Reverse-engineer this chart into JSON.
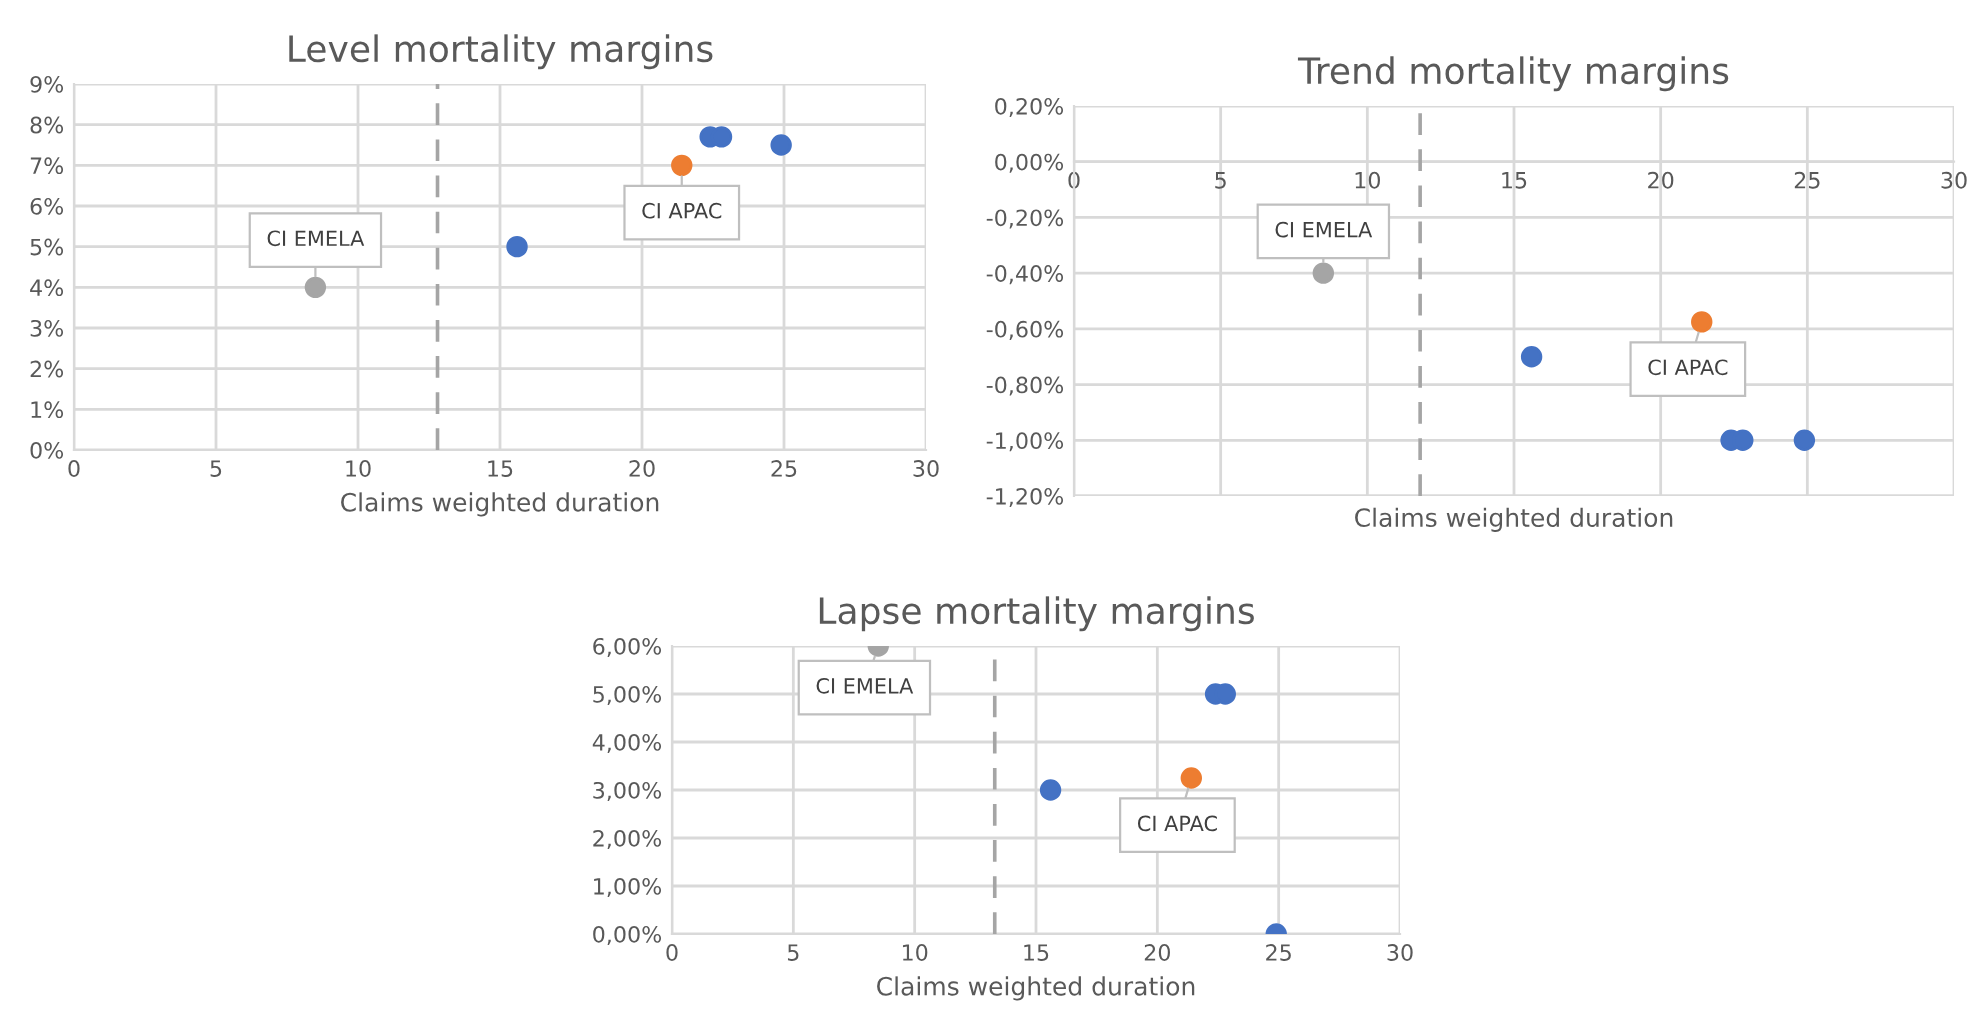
{
  "chart_data": [
    {
      "type": "scatter",
      "title": "Level mortality margins",
      "xlabel": "Claims weighted duration",
      "xlim": [
        0,
        30
      ],
      "xticks": [
        0,
        5,
        10,
        15,
        20,
        25,
        30
      ],
      "ylim": [
        0,
        9
      ],
      "yticks": [
        {
          "value": 0,
          "label": "0%"
        },
        {
          "value": 1,
          "label": "1%"
        },
        {
          "value": 2,
          "label": "2%"
        },
        {
          "value": 3,
          "label": "3%"
        },
        {
          "value": 4,
          "label": "4%"
        },
        {
          "value": 5,
          "label": "5%"
        },
        {
          "value": 6,
          "label": "6%"
        },
        {
          "value": 7,
          "label": "7%"
        },
        {
          "value": 8,
          "label": "8%"
        },
        {
          "value": 9,
          "label": "9%"
        }
      ],
      "grid": true,
      "marker": "circle",
      "series": [
        {
          "color": "#4472c4",
          "x": [
            15.6,
            22.4,
            22.8,
            24.9
          ],
          "values": [
            5.0,
            7.7,
            7.7,
            7.5
          ]
        },
        {
          "name": "CI APAC",
          "color": "#ed7d31",
          "x": [
            21.4
          ],
          "values": [
            7.0
          ]
        },
        {
          "name": "CI EMELA",
          "color": "#a5a5a5",
          "x": [
            8.5
          ],
          "values": [
            4.0
          ]
        }
      ],
      "ref_lines": [
        {
          "axis": "x",
          "value": 12.8,
          "color": "#a5a5a5",
          "line_style": "dashed"
        }
      ]
    },
    {
      "type": "scatter",
      "title": "Trend mortality margins",
      "xlabel": "Claims weighted duration",
      "xlim": [
        0,
        30
      ],
      "xticks": [
        0,
        5,
        10,
        15,
        20,
        25,
        30
      ],
      "ylim": [
        -1.2,
        0.2
      ],
      "yticks": [
        {
          "value": -1.2,
          "label": "-1,20%"
        },
        {
          "value": -1.0,
          "label": "-1,00%"
        },
        {
          "value": -0.8,
          "label": "-0,80%"
        },
        {
          "value": -0.6,
          "label": "-0,60%"
        },
        {
          "value": -0.4,
          "label": "-0,40%"
        },
        {
          "value": -0.2,
          "label": "-0,20%"
        },
        {
          "value": 0,
          "label": "0,00%"
        },
        {
          "value": 0.2,
          "label": "0,20%"
        }
      ],
      "grid": true,
      "marker": "circle",
      "series": [
        {
          "color": "#4472c4",
          "x": [
            15.6,
            22.4,
            22.8,
            24.9
          ],
          "values": [
            -0.7,
            -1.0,
            -1.0,
            -1.0
          ]
        },
        {
          "name": "CI APAC",
          "color": "#ed7d31",
          "x": [
            21.4
          ],
          "values": [
            -0.575
          ]
        },
        {
          "name": "CI EMELA",
          "color": "#a5a5a5",
          "x": [
            8.5
          ],
          "values": [
            -0.4
          ]
        }
      ],
      "ref_lines": [
        {
          "axis": "x",
          "value": 11.8,
          "color": "#a5a5a5",
          "line_style": "dashed"
        }
      ]
    },
    {
      "type": "scatter",
      "title": "Lapse mortality margins",
      "xlabel": "Claims weighted duration",
      "xlim": [
        0,
        30
      ],
      "xticks": [
        0,
        5,
        10,
        15,
        20,
        25,
        30
      ],
      "ylim": [
        0,
        6
      ],
      "yticks": [
        {
          "value": 0,
          "label": "0,00%"
        },
        {
          "value": 1,
          "label": "1,00%"
        },
        {
          "value": 2,
          "label": "2,00%"
        },
        {
          "value": 3,
          "label": "3,00%"
        },
        {
          "value": 4,
          "label": "4,00%"
        },
        {
          "value": 5,
          "label": "5,00%"
        },
        {
          "value": 6,
          "label": "6,00%"
        }
      ],
      "grid": true,
      "marker": "circle",
      "series": [
        {
          "color": "#4472c4",
          "x": [
            15.6,
            22.4,
            22.8,
            24.9
          ],
          "values": [
            3.0,
            5.0,
            5.0,
            0.0
          ]
        },
        {
          "name": "CI APAC",
          "color": "#ed7d31",
          "x": [
            21.4
          ],
          "values": [
            3.25
          ]
        },
        {
          "name": "CI EMELA",
          "color": "#a5a5a5",
          "x": [
            8.5
          ],
          "values": [
            6.0
          ]
        }
      ],
      "ref_lines": [
        {
          "axis": "x",
          "value": 13.3,
          "color": "#a5a5a5",
          "line_style": "dashed"
        }
      ]
    }
  ]
}
